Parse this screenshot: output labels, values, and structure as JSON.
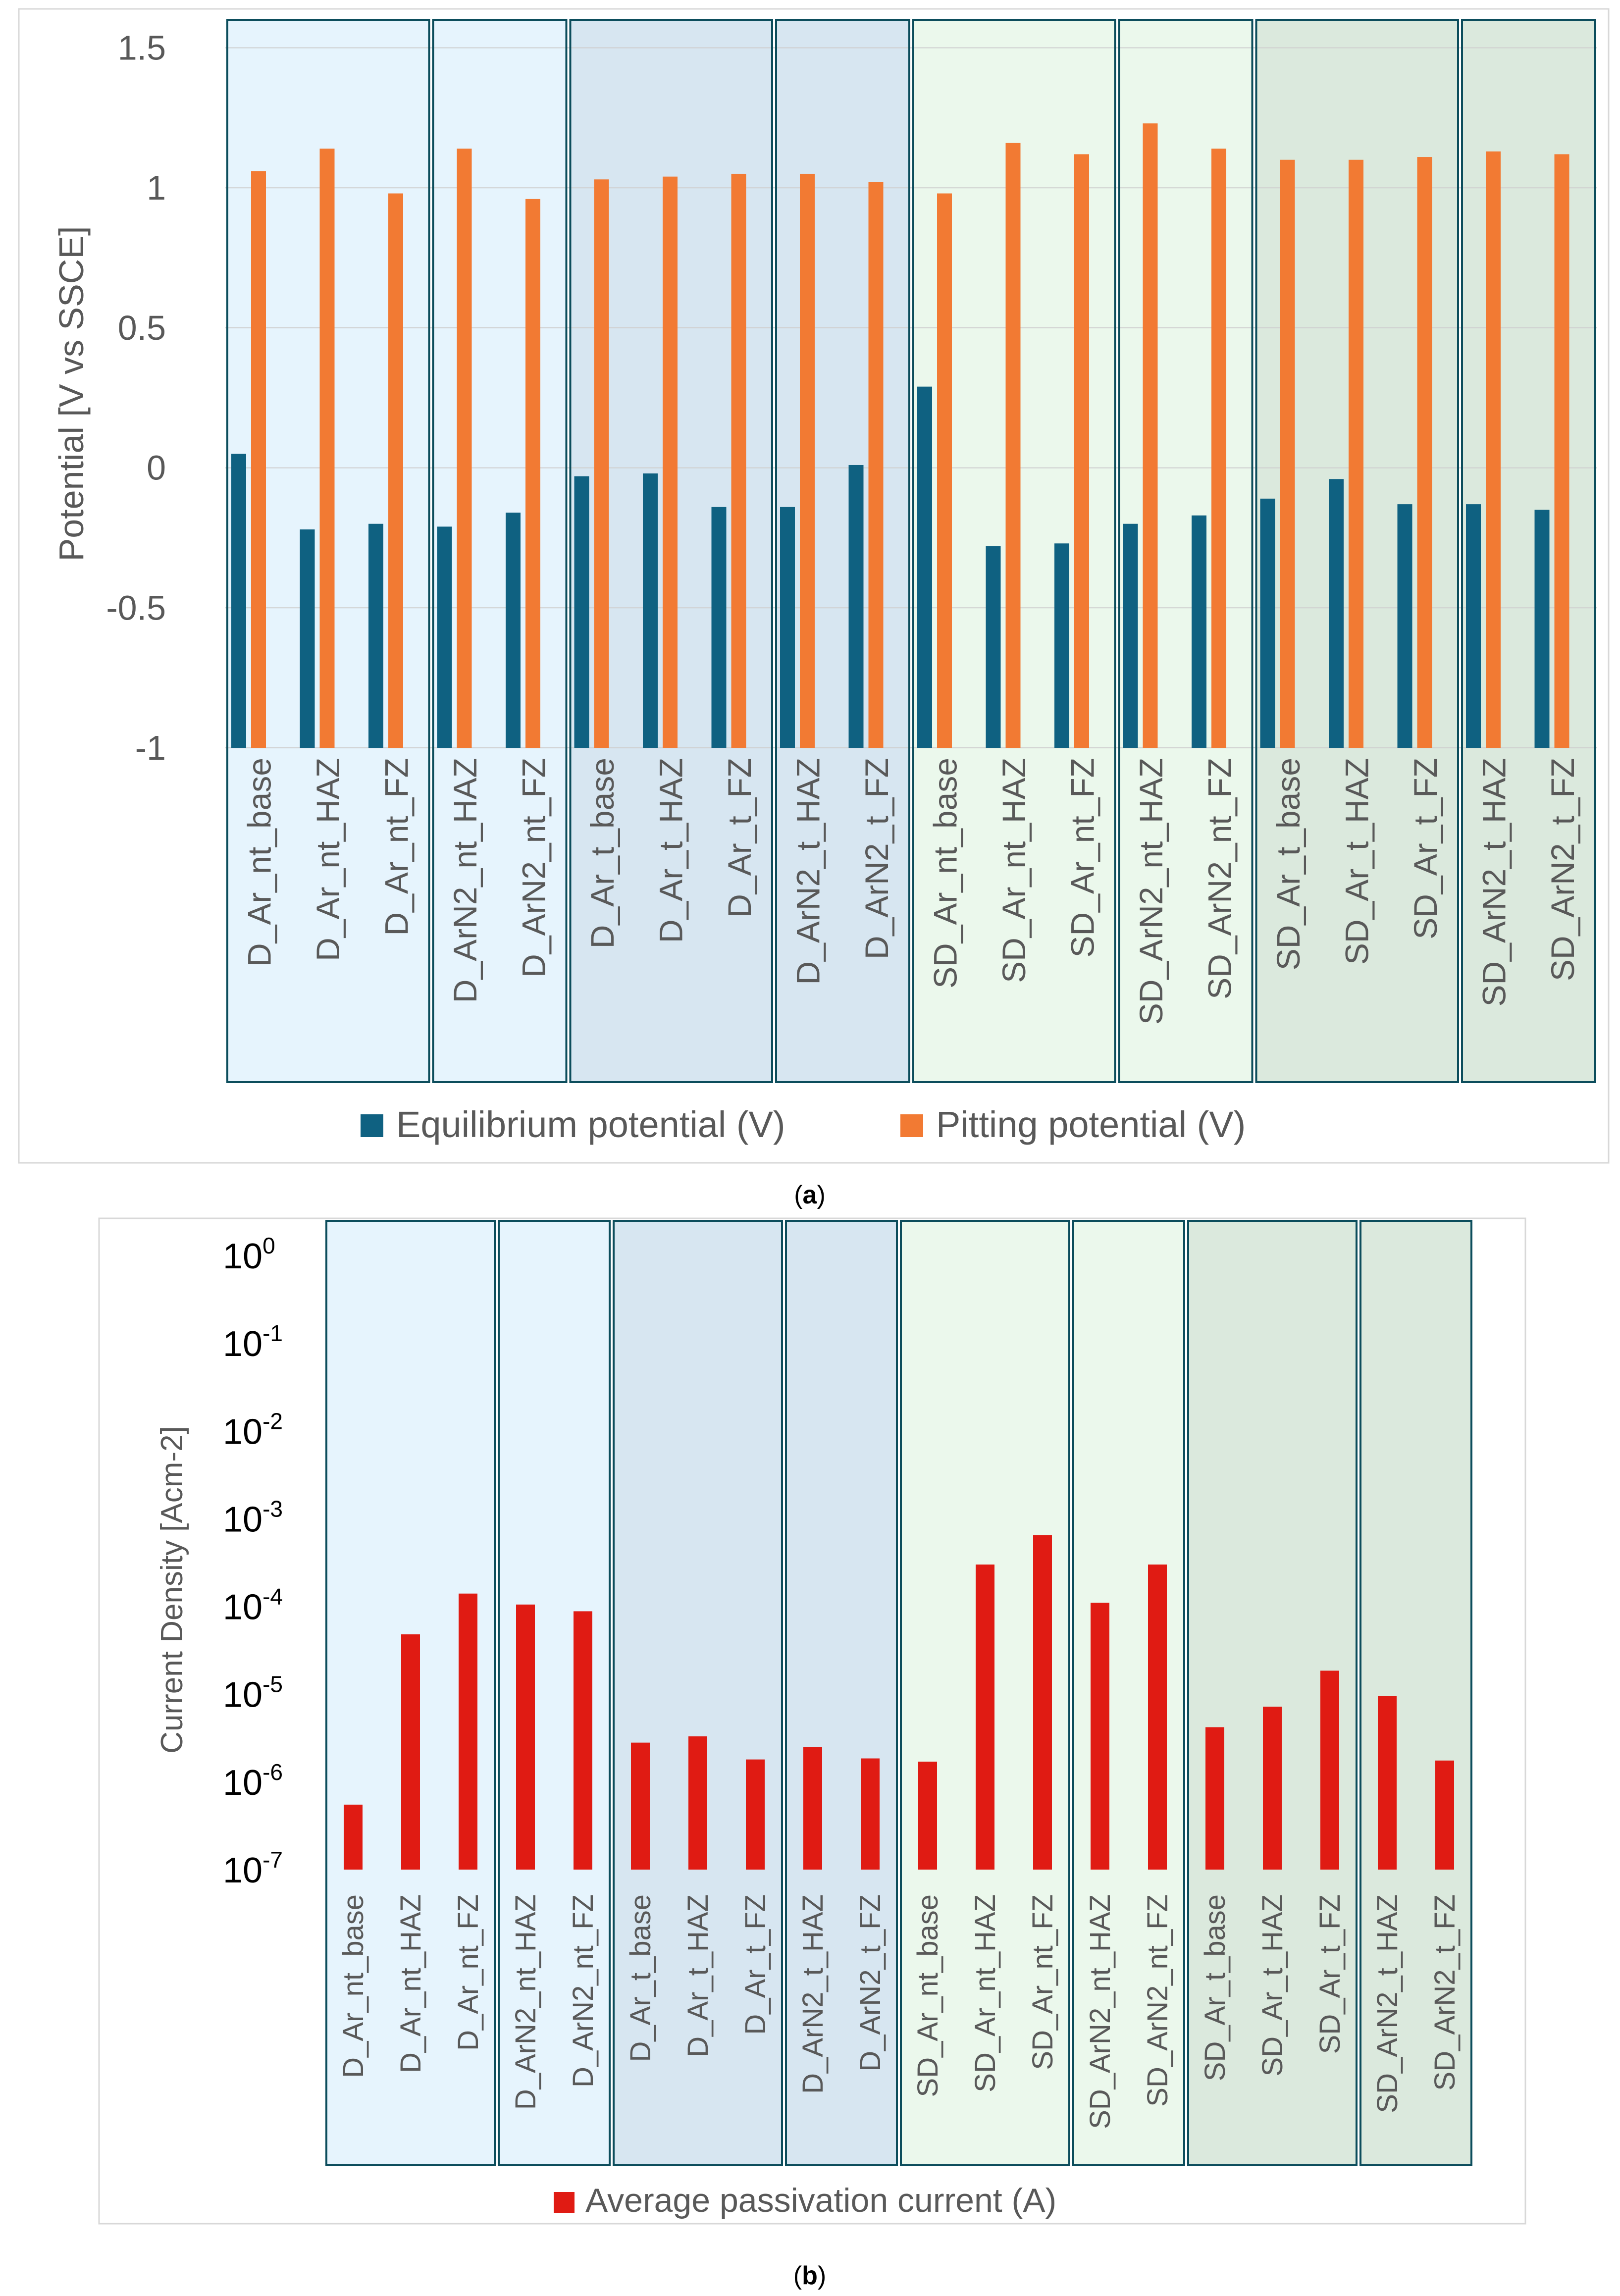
{
  "chart_data": [
    {
      "type": "bar",
      "panel_label": "a",
      "title": "",
      "xlabel": "",
      "ylabel": "Potential [V vs SSCE]",
      "ylim": [
        -1,
        1.6
      ],
      "yticks": [
        -1,
        -0.5,
        0,
        0.5,
        1,
        1.5
      ],
      "ytick_labels": [
        "-1",
        "-0.5",
        "0",
        "0.5",
        "1",
        "1.5"
      ],
      "grid": true,
      "legend_position": "bottom",
      "categories": [
        "D_Ar_nt_base",
        "D_Ar_nt_HAZ",
        "D_Ar_nt_FZ",
        "D_ArN2_nt_HAZ",
        "D_ArN2_nt_FZ",
        "D_Ar_t_base",
        "D_Ar_t_HAZ",
        "D_Ar_t_FZ",
        "D_ArN2_t_HAZ",
        "D_ArN2_t_FZ",
        "SD_Ar_nt_base",
        "SD_Ar_nt_HAZ",
        "SD_Ar_nt_FZ",
        "SD_ArN2_nt_HAZ",
        "SD_ArN2_nt_FZ",
        "SD_Ar_t_base",
        "SD_Ar_t_HAZ",
        "SD_Ar_t_FZ",
        "SD_ArN2_t_HAZ",
        "SD_ArN2_t_FZ"
      ],
      "groups": [
        {
          "count": 3,
          "color": "#e6f4fd"
        },
        {
          "count": 2,
          "color": "#e6f4fd"
        },
        {
          "count": 3,
          "color": "#d7e6f1"
        },
        {
          "count": 2,
          "color": "#d7e6f1"
        },
        {
          "count": 3,
          "color": "#ebf8ec"
        },
        {
          "count": 2,
          "color": "#ebf8ec"
        },
        {
          "count": 3,
          "color": "#dbe9dd"
        },
        {
          "count": 2,
          "color": "#dbe9dd"
        }
      ],
      "series": [
        {
          "name": "Equilibrium potential (V)",
          "color": "#0f6181",
          "values": [
            0.05,
            -0.22,
            -0.2,
            -0.21,
            -0.16,
            -0.03,
            -0.02,
            -0.14,
            -0.14,
            0.01,
            0.29,
            -0.28,
            -0.27,
            -0.2,
            -0.17,
            -0.11,
            -0.04,
            -0.13,
            -0.13,
            -0.15
          ]
        },
        {
          "name": "Pitting potential (V)",
          "color": "#f27a33",
          "values": [
            1.06,
            1.14,
            0.98,
            1.14,
            0.96,
            1.03,
            1.04,
            1.05,
            1.05,
            1.02,
            0.98,
            1.16,
            1.12,
            1.23,
            1.14,
            1.1,
            1.1,
            1.11,
            1.13,
            1.12
          ]
        }
      ]
    },
    {
      "type": "bar",
      "panel_label": "b",
      "title": "",
      "xlabel": "",
      "ylabel": "Current Density [Acm-2]",
      "yscale": "log",
      "ylim": [
        1e-07,
        1
      ],
      "ytick_bases": [
        "10",
        "10",
        "10",
        "10",
        "10",
        "10",
        "10",
        "10"
      ],
      "ytick_exponents": [
        "-7",
        "-6",
        "-5",
        "-4",
        "-3",
        "-2",
        "-1",
        "0"
      ],
      "grid": false,
      "legend_position": "bottom",
      "categories": [
        "D_Ar_nt_base",
        "D_Ar_nt_HAZ",
        "D_Ar_nt_FZ",
        "D_ArN2_nt_HAZ",
        "D_ArN2_nt_FZ",
        "D_Ar_t_base",
        "D_Ar_t_HAZ",
        "D_Ar_t_FZ",
        "D_ArN2_t_HAZ",
        "D_ArN2_t_FZ",
        "SD_Ar_nt_base",
        "SD_Ar_nt_HAZ",
        "SD_Ar_nt_FZ",
        "SD_ArN2_nt_HAZ",
        "SD_ArN2_nt_FZ",
        "SD_Ar_t_base",
        "SD_Ar_t_HAZ",
        "SD_Ar_t_FZ",
        "SD_ArN2_t_HAZ",
        "SD_ArN2_t_FZ"
      ],
      "groups": [
        {
          "count": 3,
          "color": "#e6f4fd"
        },
        {
          "count": 2,
          "color": "#e6f4fd"
        },
        {
          "count": 3,
          "color": "#d7e6f1"
        },
        {
          "count": 2,
          "color": "#d7e6f1"
        },
        {
          "count": 3,
          "color": "#ebf8ec"
        },
        {
          "count": 2,
          "color": "#ebf8ec"
        },
        {
          "count": 3,
          "color": "#dbe9dd"
        },
        {
          "count": 2,
          "color": "#dbe9dd"
        }
      ],
      "series": [
        {
          "name": "Average passivation current (A)",
          "color": "#e01b13",
          "values": [
            5.5e-07,
            4.8e-05,
            0.00014,
            0.000105,
            8.8e-05,
            2.8e-06,
            3.3e-06,
            1.8e-06,
            2.5e-06,
            1.85e-06,
            1.7e-06,
            0.0003,
            0.00065,
            0.00011,
            0.0003,
            4.2e-06,
            7.2e-06,
            1.85e-05,
            9.5e-06,
            1.75e-06
          ]
        }
      ]
    }
  ]
}
